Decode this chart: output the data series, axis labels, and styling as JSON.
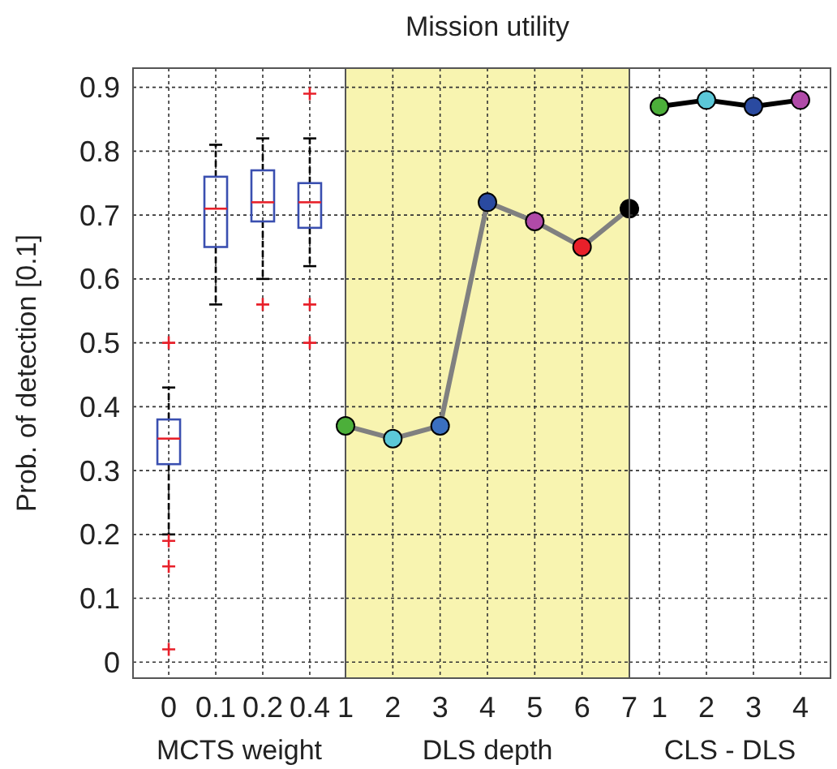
{
  "chart_data": [
    {
      "type": "box",
      "xlabel": "MCTS weight",
      "ylabel": "Prob. of detection [0.1]",
      "categories": [
        "0",
        "0.1",
        "0.2",
        "0.4"
      ],
      "ylim": [
        -0.025,
        0.93
      ],
      "yticks": [
        0,
        0.1,
        0.2,
        0.3,
        0.4,
        0.5,
        0.6,
        0.7,
        0.8,
        0.9
      ],
      "grid": true,
      "boxes": [
        {
          "low": 0.2,
          "q1": 0.31,
          "median": 0.35,
          "q3": 0.38,
          "high": 0.43,
          "outliers": [
            0.5,
            0.19,
            0.15,
            0.02
          ]
        },
        {
          "low": 0.56,
          "q1": 0.65,
          "median": 0.71,
          "q3": 0.76,
          "high": 0.81
        },
        {
          "low": 0.6,
          "q1": 0.69,
          "median": 0.72,
          "q3": 0.77,
          "high": 0.82,
          "outliers": [
            0.56
          ]
        },
        {
          "low": 0.62,
          "q1": 0.68,
          "median": 0.72,
          "q3": 0.75,
          "high": 0.82,
          "outliers": [
            0.89,
            0.56,
            0.5
          ]
        }
      ]
    },
    {
      "type": "line",
      "title": "Mission utility",
      "xlabel": "DLS depth",
      "x": [
        1,
        2,
        3,
        4,
        5,
        6,
        7
      ],
      "xlim": [
        1,
        7
      ],
      "xticks": [
        1,
        2,
        3,
        4,
        5,
        6,
        7
      ],
      "ylim": [
        -0.025,
        0.93
      ],
      "yticks": [
        0,
        0.1,
        0.2,
        0.3,
        0.4,
        0.5,
        0.6,
        0.7,
        0.8,
        0.9
      ],
      "grid": true,
      "tick_labels": "x",
      "marker": "circle",
      "bands": [
        {
          "axis": "x",
          "from": 1,
          "to": 7,
          "color": "#f8f4b0"
        }
      ],
      "series": [
        {
          "color": "#808080",
          "colors": [
            "#4caf3a",
            "#5bc8d8",
            "#3a6fc0",
            "#2a4aa0",
            "#b04aa8",
            "#e8202a",
            "#000000"
          ],
          "values": [
            0.37,
            0.35,
            0.37,
            0.72,
            0.69,
            0.65,
            0.71
          ]
        }
      ]
    },
    {
      "type": "line",
      "xlabel": "CLS - DLS",
      "categories": [
        "1",
        "2",
        "3",
        "4"
      ],
      "ylim": [
        -0.025,
        0.93
      ],
      "yticks": [
        0,
        0.1,
        0.2,
        0.3,
        0.4,
        0.5,
        0.6,
        0.7,
        0.8,
        0.9
      ],
      "grid": true,
      "tick_labels": "x",
      "marker": "circle",
      "series": [
        {
          "color": "#000000",
          "colors": [
            "#4caf3a",
            "#5bc8d8",
            "#2a4aa0",
            "#b04aa8"
          ],
          "values": [
            0.87,
            0.88,
            0.87,
            0.88
          ]
        }
      ]
    }
  ]
}
